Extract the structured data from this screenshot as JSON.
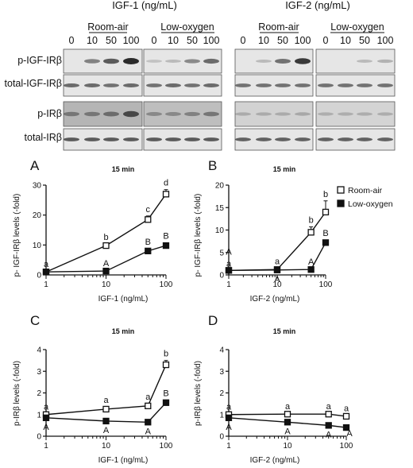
{
  "blot": {
    "headers": [
      {
        "title": "IGF-1 (ng/mL)",
        "conditions": [
          "Room-air",
          "Low-oxygen"
        ]
      },
      {
        "title": "IGF-2 (ng/mL)",
        "conditions": [
          "Room-air",
          "Low-oxygen"
        ]
      }
    ],
    "doses": [
      "0",
      "10",
      "50",
      "100"
    ],
    "rows": [
      "p-IGF-IRβ",
      "total-IGF-IRβ",
      "p-IRβ",
      "total-IRβ"
    ],
    "band_colors": {
      "background": "#e6e6e6",
      "band": "#2a2a2a"
    }
  },
  "legend": {
    "series": [
      "Room-air",
      "Low-oxygen"
    ],
    "placement": "top-right of panel B"
  },
  "chart_data": [
    {
      "panel": "A",
      "type": "line",
      "title": "15 min",
      "log_x": true,
      "xlabel": "IGF-1 (ng/mL)",
      "ylabel": "p- IGF-IRβ levels (-fold)",
      "xlim": [
        1,
        100
      ],
      "ylim": [
        0,
        30
      ],
      "xticks": [
        "1",
        "10",
        "100"
      ],
      "yticks": [
        "0",
        "10",
        "20",
        "30"
      ],
      "x": [
        1,
        10,
        50,
        100
      ],
      "series": [
        {
          "name": "Room-air",
          "values": [
            1,
            9.8,
            18.5,
            27
          ],
          "errors": [
            0.3,
            0.6,
            1.2,
            1.5
          ],
          "labels": [
            "a",
            "b",
            "c",
            "d"
          ]
        },
        {
          "name": "Low-oxygen",
          "values": [
            1,
            1.3,
            8,
            9.8
          ],
          "errors": [
            0.2,
            0.3,
            0.8,
            0.9
          ],
          "labels": [
            "",
            "A",
            "B",
            "B"
          ]
        }
      ]
    },
    {
      "panel": "B",
      "type": "line",
      "title": "15 min",
      "log_x": true,
      "xlabel": "IGF-2 (ng/mL)",
      "ylabel": "p- IGF-IRβ levels (-fold)",
      "xlim": [
        1,
        100
      ],
      "ylim": [
        0,
        20
      ],
      "xticks": [
        "1",
        "10",
        "100"
      ],
      "yticks": [
        "0",
        "5",
        "10",
        "15",
        "20"
      ],
      "x": [
        1,
        10,
        50,
        100
      ],
      "series": [
        {
          "name": "Room-air",
          "values": [
            1,
            1.2,
            9.5,
            14
          ],
          "errors": [
            0.3,
            0.3,
            1.2,
            2.5
          ],
          "labels": [
            "a",
            "a",
            "b",
            "b"
          ]
        },
        {
          "name": "Low-oxygen",
          "values": [
            1,
            1.1,
            1.2,
            7.2
          ],
          "errors": [
            0.2,
            0.2,
            0.2,
            0.6
          ],
          "labels": [
            "A",
            "A",
            "A",
            "B"
          ]
        }
      ]
    },
    {
      "panel": "C",
      "type": "line",
      "title": "15 min",
      "log_x": true,
      "xlabel": "IGF-1 (ng/mL)",
      "ylabel": "p-IRβ levels (-fold)",
      "xlim": [
        1,
        100
      ],
      "ylim": [
        0,
        4
      ],
      "xticks": [
        "1",
        "10",
        "100"
      ],
      "yticks": [
        "0",
        "1",
        "2",
        "3",
        "4"
      ],
      "x": [
        1,
        10,
        50,
        100
      ],
      "series": [
        {
          "name": "Room-air",
          "values": [
            1,
            1.25,
            1.4,
            3.3
          ],
          "errors": [
            0.05,
            0.1,
            0.1,
            0.2
          ],
          "labels": [
            "a",
            "a",
            "a",
            "b"
          ]
        },
        {
          "name": "Low-oxygen",
          "values": [
            0.85,
            0.7,
            0.65,
            1.55
          ],
          "errors": [
            0.05,
            0.08,
            0.06,
            0.12
          ],
          "labels": [
            "A",
            "A",
            "A",
            "B"
          ]
        }
      ]
    },
    {
      "panel": "D",
      "type": "line",
      "title": "15 min",
      "log_x": true,
      "xlabel": "IGF-2 (ng/mL)",
      "ylabel": "p-IRβ levels (-fold)",
      "xlim": [
        1,
        100
      ],
      "ylim": [
        0,
        4
      ],
      "xticks": [
        "1",
        "10",
        "100"
      ],
      "yticks": [
        "0",
        "1",
        "2",
        "3",
        "4"
      ],
      "x": [
        1,
        10,
        50,
        100
      ],
      "series": [
        {
          "name": "Room-air",
          "values": [
            1,
            1.02,
            1.02,
            0.92
          ],
          "errors": [
            0.05,
            0.05,
            0.05,
            0.06
          ],
          "labels": [
            "a",
            "a",
            "a",
            "a"
          ]
        },
        {
          "name": "Low-oxygen",
          "values": [
            0.85,
            0.65,
            0.5,
            0.4
          ],
          "errors": [
            0.05,
            0.06,
            0.05,
            0.05
          ],
          "labels": [
            "A",
            "A",
            "A",
            "A"
          ]
        }
      ]
    }
  ]
}
